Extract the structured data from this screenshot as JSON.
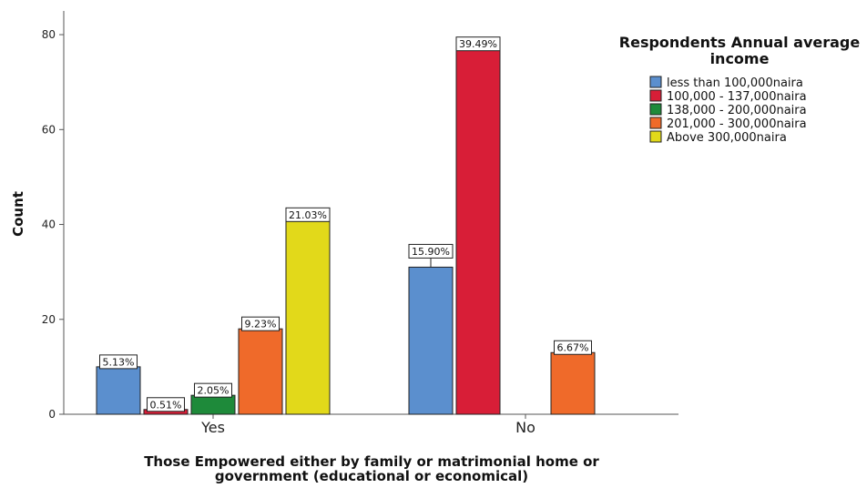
{
  "chart_data": {
    "type": "bar",
    "xlabel_lines": [
      "Those Empowered either by family or matrimonial home or",
      "government (educational or economical)"
    ],
    "ylabel": "Count",
    "ylim": [
      0,
      85
    ],
    "yticks": [
      0,
      20,
      40,
      60,
      80
    ],
    "categories": [
      "Yes",
      "No"
    ],
    "legend_title_lines": [
      "Respondents  Annual average",
      "income"
    ],
    "legend_position": "top-right",
    "grid": false,
    "series": [
      {
        "name": "less than 100,000naira",
        "color": "#5b8fce",
        "values": [
          10,
          31
        ],
        "labels": [
          "5.13%",
          "15.90%"
        ]
      },
      {
        "name": "100,000 - 137,000naira",
        "color": "#d81e37",
        "values": [
          1,
          77
        ],
        "labels": [
          "0.51%",
          "39.49%"
        ]
      },
      {
        "name": "138,000 - 200,000naira",
        "color": "#1e8a3a",
        "values": [
          4,
          0
        ],
        "labels": [
          "2.05%",
          ""
        ]
      },
      {
        "name": "201,000 - 300,000naira",
        "color": "#ef6a2a",
        "values": [
          18,
          13
        ],
        "labels": [
          "9.23%",
          "6.67%"
        ]
      },
      {
        "name": "Above 300,000naira",
        "color": "#e2d91a",
        "values": [
          41,
          0
        ],
        "labels": [
          "21.03%",
          ""
        ]
      }
    ]
  }
}
